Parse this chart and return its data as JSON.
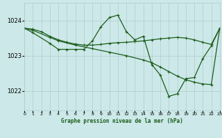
{
  "title": "Graphe pression niveau de la mer (hPa)",
  "background_color": "#cce8e8",
  "grid_color": "#b0cccc",
  "line_color": "#1a5c1a",
  "xlim": [
    0,
    23
  ],
  "ylim": [
    1021.45,
    1024.5
  ],
  "yticks": [
    1022,
    1023,
    1024
  ],
  "xtick_labels": [
    "0",
    "1",
    "2",
    "3",
    "4",
    "5",
    "6",
    "7",
    "8",
    "9",
    "10",
    "11",
    "12",
    "13",
    "14",
    "15",
    "16",
    "17",
    "18",
    "19",
    "20",
    "21",
    "22",
    "23"
  ],
  "series1": {
    "x": [
      0,
      1,
      2,
      3,
      4,
      5,
      6,
      7,
      8,
      9,
      10,
      11,
      12,
      13,
      14,
      15,
      16,
      17,
      18,
      19,
      20,
      21,
      22,
      23
    ],
    "y": [
      1023.78,
      1023.75,
      1023.68,
      1023.55,
      1023.45,
      1023.38,
      1023.33,
      1023.3,
      1023.3,
      1023.32,
      1023.35,
      1023.37,
      1023.38,
      1023.4,
      1023.42,
      1023.45,
      1023.48,
      1023.5,
      1023.52,
      1023.5,
      1023.45,
      1023.38,
      1023.32,
      1023.78
    ]
  },
  "series2": {
    "x": [
      0,
      1,
      3,
      4,
      6,
      8,
      10,
      12,
      14,
      15,
      16,
      17,
      18,
      19,
      20,
      21,
      22,
      23
    ],
    "y": [
      1023.78,
      1023.72,
      1023.52,
      1023.42,
      1023.3,
      1023.2,
      1023.1,
      1023.0,
      1022.88,
      1022.8,
      1022.68,
      1022.55,
      1022.42,
      1022.32,
      1022.25,
      1022.2,
      1022.18,
      1023.78
    ]
  },
  "series3": {
    "x": [
      0,
      1,
      3,
      4,
      5,
      6,
      7,
      8,
      9,
      10,
      11,
      12,
      13,
      14,
      15,
      16,
      17,
      18,
      19,
      20,
      21,
      22,
      23
    ],
    "y": [
      1023.78,
      1023.65,
      1023.35,
      1023.18,
      1023.18,
      1023.18,
      1023.18,
      1023.42,
      1023.82,
      1024.08,
      1024.15,
      1023.68,
      1023.45,
      1023.55,
      1022.75,
      1022.45,
      1021.85,
      1021.92,
      1022.35,
      1022.38,
      1022.92,
      1023.28,
      1023.78
    ]
  }
}
